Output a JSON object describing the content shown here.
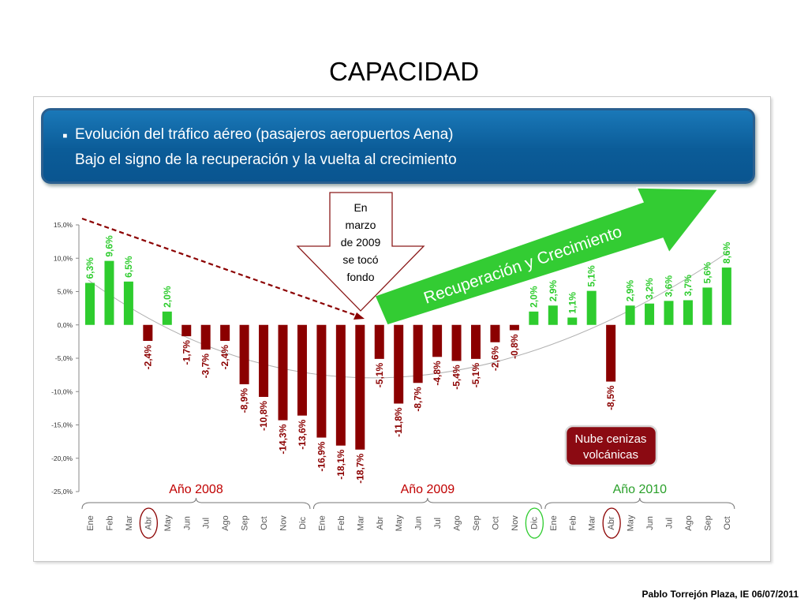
{
  "slide": {
    "title": "CAPACIDAD",
    "footer": "Pablo Torrejón Plaza, IE 06/07/2011"
  },
  "header": {
    "bullet": "▪",
    "line1": "Evolución del tráfico aéreo (pasajeros aeropuertos Aena)",
    "line2": "Bajo el signo de la recuperación y la vuelta al crecimiento"
  },
  "callouts": {
    "bottom": [
      "En",
      "marzo",
      "de 2009",
      "se tocó",
      "fondo"
    ],
    "recovery": "Recuperación y Crecimiento",
    "volcanic": [
      "Nube cenizas",
      "volcánicas"
    ]
  },
  "colors": {
    "positive": "#2ecc2e",
    "negative": "#8b0000",
    "year2008": "#c00000",
    "year2009": "#c00000",
    "year2010": "#2aa02a",
    "header": "#0b5c98",
    "arrow": "#33cc33"
  },
  "chart_data": {
    "type": "bar",
    "ylim": [
      -25,
      15
    ],
    "yticks": [
      "15,0%",
      "10,0%",
      "5,0%",
      "0,0%",
      "-5,0%",
      "-10,0%",
      "-15,0%",
      "-20,0%",
      "-25,0%"
    ],
    "ytick_values": [
      15,
      10,
      5,
      0,
      -5,
      -10,
      -15,
      -20,
      -25
    ],
    "categories": [
      "Ene",
      "Feb",
      "Mar",
      "Abr",
      "May",
      "Jun",
      "Jul",
      "Ago",
      "Sep",
      "Oct",
      "Nov",
      "Dic",
      "Ene",
      "Feb",
      "Mar",
      "Abr",
      "May",
      "Jun",
      "Jul",
      "Ago",
      "Sep",
      "Oct",
      "Nov",
      "Dic",
      "Ene",
      "Feb",
      "Mar",
      "Abr",
      "May",
      "Jun",
      "Jul",
      "Ago",
      "Sep",
      "Oct"
    ],
    "values": [
      6.3,
      9.6,
      6.5,
      -2.4,
      2.0,
      -1.7,
      -3.7,
      -2.4,
      -8.9,
      -10.8,
      -14.3,
      -13.6,
      -16.9,
      -18.1,
      -18.7,
      -5.1,
      -11.8,
      -8.7,
      -4.8,
      -5.4,
      -5.1,
      -2.6,
      -0.8,
      2.0,
      2.9,
      1.1,
      5.1,
      -8.5,
      2.9,
      3.2,
      3.6,
      3.7,
      5.6,
      8.6
    ],
    "labels": [
      "6,3%",
      "9,6%",
      "6,5%",
      "-2,4%",
      "2,0%",
      "-1,7%",
      "-3,7%",
      "-2,4%",
      "-8,9%",
      "-10,8%",
      "-14,3%",
      "-13,6%",
      "-16,9%",
      "-18,1%",
      "-18,7%",
      "-5,1%",
      "-11,8%",
      "-8,7%",
      "-4,8%",
      "-5,4%",
      "-5,1%",
      "-2,6%",
      "-0,8%",
      "2,0%",
      "2,9%",
      "1,1%",
      "5,1%",
      "-8,5%",
      "2,9%",
      "3,2%",
      "3,6%",
      "3,7%",
      "5,6%",
      "8,6%"
    ],
    "years": [
      {
        "label": "Año 2008",
        "color": "#c00000"
      },
      {
        "label": "Año 2009",
        "color": "#c00000"
      },
      {
        "label": "Año 2010",
        "color": "#2aa02a"
      }
    ],
    "circled_months": [
      "Abr",
      "Dic",
      "Abr"
    ],
    "legend": "none",
    "grid": false
  }
}
